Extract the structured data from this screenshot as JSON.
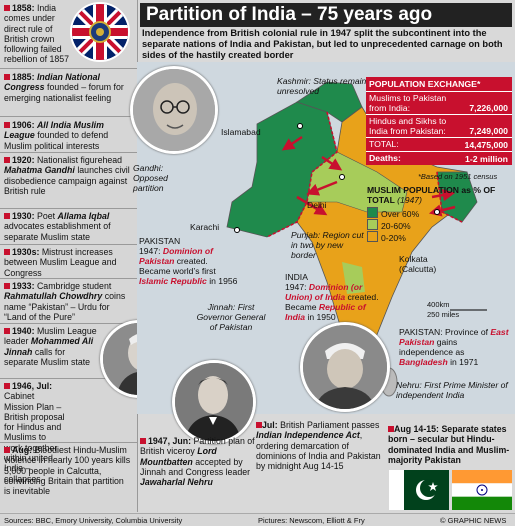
{
  "title": "Partition of India – 75 years ago",
  "subtitle": "Independence from British colonial rule in 1947 split the subcontinent into the separate nations of India and Pakistan, but led to unprecedented carnage on both sides of the hastily created border",
  "timeline": [
    {
      "year": "1858:",
      "text": "India comes under direct rule of British crown following failed rebellion of 1857"
    },
    {
      "year": "1885:",
      "highlight": "Indian National Congress",
      "text": "founded – forum for emerging nationalist feeling"
    },
    {
      "year": "1906:",
      "highlight": "All India Muslim League",
      "text": "founded to defend Muslim political interests"
    },
    {
      "year": "1920:",
      "text_pre": "Nationalist figurehead",
      "highlight": "Mahatma Gandhi",
      "text": "launches civil disobedience campaign against British rule"
    },
    {
      "year": "1930:",
      "text_pre": "Poet",
      "highlight": "Allama Iqbal",
      "text": "advocates establishment of separate Muslim state"
    },
    {
      "year": "1930s:",
      "text": "Mistrust increases between Muslim League and Congress"
    },
    {
      "year": "1933:",
      "text_pre": "Cambridge student",
      "highlight": "Rahmatullah Chowdhry",
      "text": "coins name “Pakistan” – Urdu for “Land of the Pure”"
    },
    {
      "year": "1940:",
      "text_pre": "Muslim League leader",
      "highlight": "Mohammed Ali Jinnah",
      "text": "calls for separate Muslim state"
    },
    {
      "year": "1946, Jul:",
      "text": "Cabinet Mission Plan – British proposal for Hindus and Muslims to work together within united India – collapses"
    },
    {
      "year": "Aug:",
      "text": "Bloodiest Hindu-Muslim violence in nearly 100 years kills 5,000 people in Calcutta, convincing Britain that partition is inevitable"
    }
  ],
  "map": {
    "kashmir": {
      "name": "Kashmir:",
      "status": "Status remains unresolved"
    },
    "islamabad": "Islamabad",
    "delhi": "Delhi",
    "karachi": "Karachi",
    "kolkata": "Kolkata",
    "kolkata_alt": "(Calcutta)",
    "punjab": {
      "name": "Punjab:",
      "text": "Region cut in two by new border"
    },
    "pakistan": {
      "name": "PAKISTAN",
      "year": "1947:",
      "highlight": "Dominion of Pakistan",
      "text1": "created. Became world’s first",
      "highlight2": "Islamic Republic",
      "text2": "in 1956"
    },
    "india": {
      "name": "INDIA",
      "year": "1947:",
      "highlight": "Dominion (or Union) of India",
      "text1": "created. Became",
      "highlight2": "Republic of India",
      "text2": "in 1950"
    },
    "east_pakistan": {
      "name": "PAKISTAN:",
      "text_pre": "Province of",
      "highlight": "East Pakistan",
      "text1": "gains independence as",
      "highlight2": "Bangladesh",
      "text2": "in 1971"
    },
    "scale_km": "400km",
    "scale_miles": "250 miles"
  },
  "population_exchange": {
    "heading": "POPULATION EXCHANGE*",
    "rows": [
      {
        "label": "Muslims to Pakistan from India:",
        "value": "7,226,000"
      },
      {
        "label": "Hindus and Sikhs to India from Pakistan:",
        "value": "7,249,000"
      },
      {
        "label": "TOTAL:",
        "value": "14,475,000"
      },
      {
        "label": "Deaths:",
        "value": "1-2 million"
      }
    ],
    "note": "*Based on 1951 census"
  },
  "legend": {
    "title": "MUSLIM POPULATION as % OF TOTAL",
    "year": "(1947)",
    "items": [
      {
        "label": "Over 60%",
        "color": "#1f8a4c"
      },
      {
        "label": "20-60%",
        "color": "#a7cc5a"
      },
      {
        "label": "0-20%",
        "color": "#e8a21a"
      }
    ]
  },
  "captions": {
    "gandhi": {
      "name": "Gandhi:",
      "text": "Opposed partition"
    },
    "jinnah": {
      "name": "Jinnah:",
      "text": "First Governor General of Pakistan"
    },
    "nehru": {
      "name": "Nehru:",
      "text": "First Prime Minister of independent India"
    }
  },
  "bottom": {
    "jun": {
      "year": "1947, Jun:",
      "text_pre": "Partition plan of British viceroy",
      "highlight": "Lord Mountbatten",
      "text": "accepted by Jinnah and Congress leader",
      "highlight2": "Jawaharlal Nehru"
    },
    "jul": {
      "year": "Jul:",
      "text_pre": "British Parliament passes",
      "highlight": "Indian Independence Act",
      "text": ", ordering demarcation of dominions of India and Pakistan by midnight Aug 14-15"
    },
    "aug": {
      "year": "Aug 14-15:",
      "text": "Separate states born – secular but Hindu-dominated India and Muslim-majority Pakistan"
    }
  },
  "footer": {
    "sources": "Sources: BBC, Emory University, Columbia University",
    "pictures": "Pictures: Newscom, Elliott & Fry",
    "credit": "© GRAPHIC NEWS"
  },
  "colors": {
    "accent_red": "#c8102e",
    "over60": "#1f8a4c",
    "mid": "#a7cc5a",
    "low": "#e8a21a",
    "sea": "#cfd8df"
  }
}
